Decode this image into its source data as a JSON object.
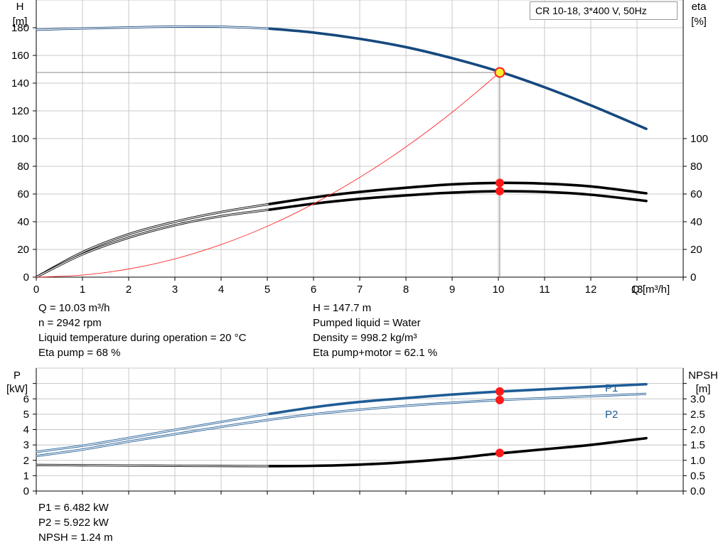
{
  "pump_title": "CR 10-18, 3*400 V, 50Hz",
  "colors": {
    "head_curve": "#16487e",
    "power_curve": "#1f5c96",
    "eta_curve": "#000000",
    "system_curve": "#ff2a2a",
    "duty_point": "#ff1a1a",
    "grid": "#c8c8c8"
  },
  "operating_point": {
    "q_text": "Q = 10.03 m³/h",
    "n_text": "n = 2942 rpm",
    "temp_text": "Liquid temperature during operation = 20 °C",
    "eta_pump_text": "Eta pump = 68 %",
    "h_text": "H = 147.7 m",
    "liquid_text": "Pumped liquid = Water",
    "density_text": "Density = 998.2 kg/m³",
    "eta_total_text": "Eta pump+motor = 62.1 %",
    "p1_text": "P1 = 6.482 kW",
    "p2_text": "P2 = 5.922 kW",
    "npsh_text": "NPSH = 1.24 m"
  },
  "chart_data": [
    {
      "type": "line",
      "title": "CR 10-18, 3*400 V, 50Hz",
      "xlabel": "Q [m³/h]",
      "ylabel": "H [m]",
      "y2label": "eta [%]",
      "ylabel_lines": [
        "H",
        "[m]"
      ],
      "y2label_lines": [
        "eta",
        "[%]"
      ],
      "xlim": [
        0,
        14
      ],
      "ylim": [
        0,
        200
      ],
      "y2lim": [
        0,
        200
      ],
      "x_ticks": [
        0,
        1,
        2,
        3,
        4,
        5,
        6,
        7,
        8,
        9,
        10,
        11,
        12,
        13
      ],
      "y_ticks": [
        0,
        20,
        40,
        60,
        80,
        100,
        120,
        140,
        160,
        180
      ],
      "y2_ticks": [
        0,
        20,
        40,
        60,
        80,
        100
      ],
      "grid": true,
      "series": [
        {
          "role": "head",
          "axis": "left",
          "x": [
            0,
            1,
            2,
            3,
            4,
            5,
            6,
            7,
            8,
            9,
            10,
            11,
            12,
            13.2
          ],
          "y": [
            178.5,
            179.5,
            180.2,
            180.8,
            180.7,
            179.5,
            176.5,
            172,
            166,
            158,
            148.5,
            137,
            124,
            107
          ],
          "bold_from": 5.05
        },
        {
          "role": "eta_pump",
          "axis": "right",
          "x": [
            0,
            1,
            2,
            3,
            4,
            5,
            6,
            7,
            8,
            9,
            10,
            11,
            12,
            13.2
          ],
          "y": [
            0,
            18,
            31,
            40,
            47,
            52.5,
            57.5,
            61.5,
            64.5,
            67,
            68,
            67.5,
            65.5,
            60.5
          ],
          "bold_from": 5.05
        },
        {
          "role": "eta_total",
          "axis": "right",
          "x": [
            0,
            1,
            2,
            3,
            4,
            5,
            6,
            7,
            8,
            9,
            10,
            11,
            12,
            13.2
          ],
          "y": [
            0,
            16.5,
            28.5,
            37.5,
            44,
            48.5,
            53,
            56.5,
            59,
            61,
            62,
            61.5,
            59.5,
            55
          ],
          "bold_from": 5.05
        },
        {
          "role": "system",
          "axis": "left",
          "x": [
            0,
            1,
            2,
            3,
            4,
            5,
            6,
            7,
            8,
            9,
            10.03
          ],
          "y": [
            0,
            1.5,
            5.9,
            13.2,
            23.5,
            36.7,
            52.9,
            72,
            94,
            119,
            147.7
          ],
          "bold_from": 999
        }
      ],
      "duty_points": [
        {
          "x": 10.03,
          "y": 147.7,
          "axis": "left",
          "style": "yellow"
        },
        {
          "x": 10.03,
          "y": 68,
          "axis": "right",
          "style": "red"
        },
        {
          "x": 10.03,
          "y": 62.1,
          "axis": "right",
          "style": "red"
        }
      ],
      "duty_hline_y": 147.7
    },
    {
      "type": "line",
      "ylabel": "P [kW]",
      "y2label": "NPSH [m]",
      "ylabel_lines": [
        "P",
        "[kW]"
      ],
      "y2label_lines": [
        "NPSH",
        "[m]"
      ],
      "xlim": [
        0,
        14
      ],
      "ylim": [
        0,
        8
      ],
      "y2lim": [
        0,
        4.0
      ],
      "x_ticks": [
        0,
        1,
        2,
        3,
        4,
        5,
        6,
        7,
        8,
        9,
        10,
        11,
        12,
        13
      ],
      "y_ticks": [
        0,
        1,
        2,
        3,
        4,
        5,
        6
      ],
      "y2_ticks": [
        0.0,
        0.5,
        1.0,
        1.5,
        2.0,
        2.5,
        3.0
      ],
      "y2_tick_labels": [
        "0.0",
        "0.5",
        "1.0",
        "1.5",
        "2.0",
        "2.5",
        "3.0"
      ],
      "grid": true,
      "series": [
        {
          "name": "P1",
          "axis": "left",
          "x": [
            0,
            1,
            2,
            3,
            4,
            5,
            6,
            7,
            8,
            9,
            10,
            11,
            12,
            13.2
          ],
          "y": [
            2.55,
            2.95,
            3.45,
            3.98,
            4.5,
            5.0,
            5.45,
            5.8,
            6.05,
            6.28,
            6.47,
            6.62,
            6.78,
            6.95
          ],
          "bold_from": 5.05
        },
        {
          "name": "P2",
          "axis": "left",
          "x": [
            0,
            1,
            2,
            3,
            4,
            5,
            6,
            7,
            8,
            9,
            10,
            11,
            12,
            13.2
          ],
          "y": [
            2.28,
            2.7,
            3.22,
            3.7,
            4.18,
            4.62,
            5.0,
            5.3,
            5.55,
            5.75,
            5.92,
            6.05,
            6.18,
            6.32
          ],
          "bold_from": 999
        },
        {
          "role": "npsh",
          "axis": "right",
          "x": [
            0,
            1,
            2,
            3,
            4,
            5,
            6,
            7,
            8,
            9,
            10,
            11,
            12,
            13.2
          ],
          "y": [
            0.85,
            0.84,
            0.83,
            0.82,
            0.815,
            0.81,
            0.82,
            0.86,
            0.94,
            1.06,
            1.22,
            1.36,
            1.5,
            1.72
          ],
          "bold_from": 5.05
        }
      ],
      "duty_points": [
        {
          "x": 10.03,
          "y": 6.482,
          "axis": "left",
          "style": "red"
        },
        {
          "x": 10.03,
          "y": 5.922,
          "axis": "left",
          "style": "red"
        },
        {
          "x": 10.03,
          "y": 1.24,
          "axis": "right",
          "style": "red"
        }
      ]
    }
  ]
}
